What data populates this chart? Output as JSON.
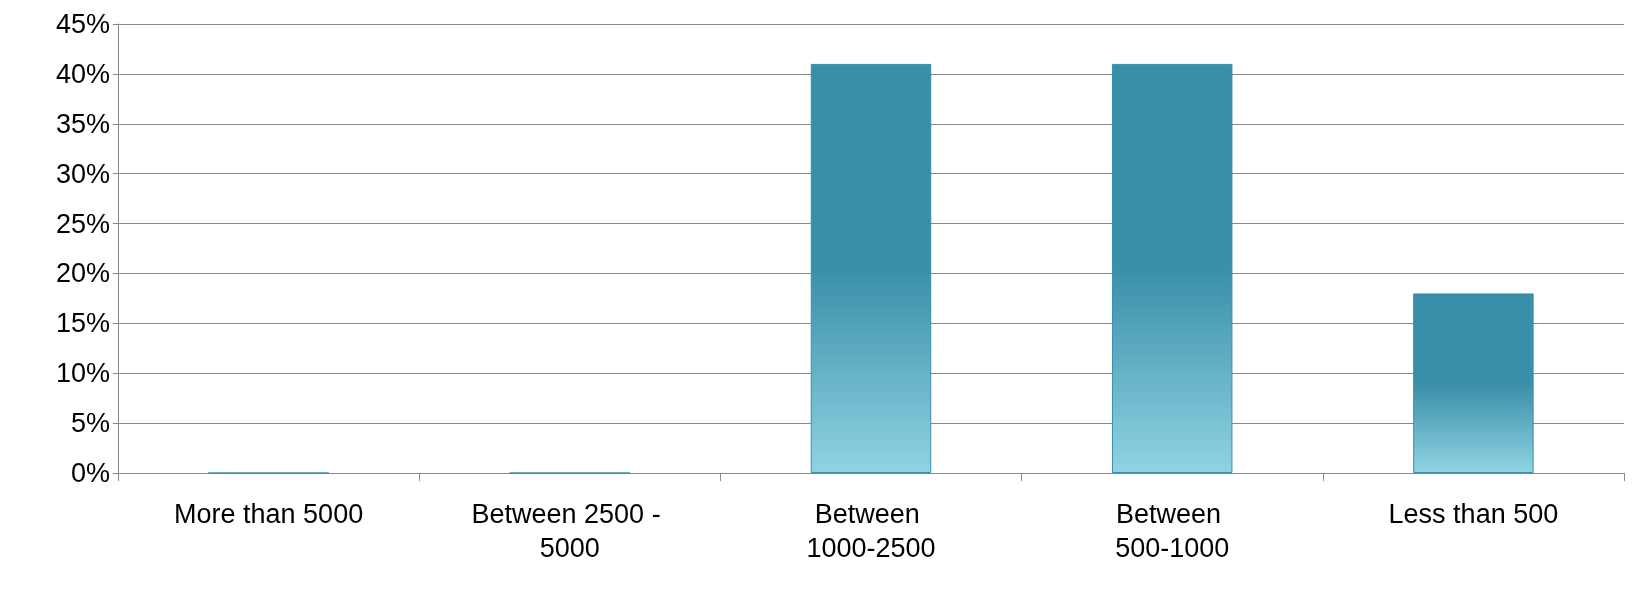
{
  "chart_data": {
    "type": "bar",
    "categories": [
      "More than 5000",
      "Between 2500 - 5000",
      "Between 1000-2500",
      "Between 500-1000",
      "Less than 500"
    ],
    "values": [
      0,
      0,
      41,
      41,
      18
    ],
    "color": "#3a8fa8",
    "ylim": [
      0,
      45
    ],
    "yticks": [
      {
        "value": 0,
        "label": "0%"
      },
      {
        "value": 5,
        "label": "5%"
      },
      {
        "value": 10,
        "label": "10%"
      },
      {
        "value": 15,
        "label": "15%"
      },
      {
        "value": 20,
        "label": "20%"
      },
      {
        "value": 25,
        "label": "25%"
      },
      {
        "value": 30,
        "label": "30%"
      },
      {
        "value": 35,
        "label": "35%"
      },
      {
        "value": 40,
        "label": "40%"
      },
      {
        "value": 45,
        "label": "45%"
      }
    ],
    "grid": "y"
  }
}
